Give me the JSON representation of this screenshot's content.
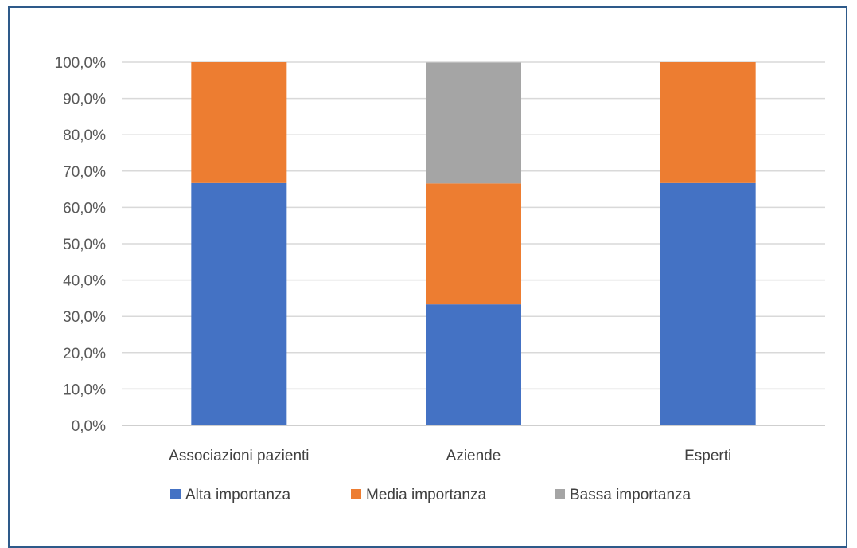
{
  "chart_data": {
    "type": "bar",
    "stacked": true,
    "categories": [
      "Associazioni pazienti",
      "Aziende",
      "Esperti"
    ],
    "series": [
      {
        "name": "Alta importanza",
        "color": "#4472c4",
        "values": [
          66.7,
          33.3,
          66.7
        ]
      },
      {
        "name": "Media importanza",
        "color": "#ed7d31",
        "values": [
          33.3,
          33.3,
          33.3
        ]
      },
      {
        "name": "Bassa importanza",
        "color": "#a5a5a5",
        "values": [
          0,
          33.3,
          0
        ]
      }
    ],
    "yticks": [
      "0,0%",
      "10,0%",
      "20,0%",
      "30,0%",
      "40,0%",
      "50,0%",
      "60,0%",
      "70,0%",
      "80,0%",
      "90,0%",
      "100,0%"
    ],
    "ylim": [
      0,
      100
    ],
    "grid": true,
    "legend_position": "bottom"
  }
}
